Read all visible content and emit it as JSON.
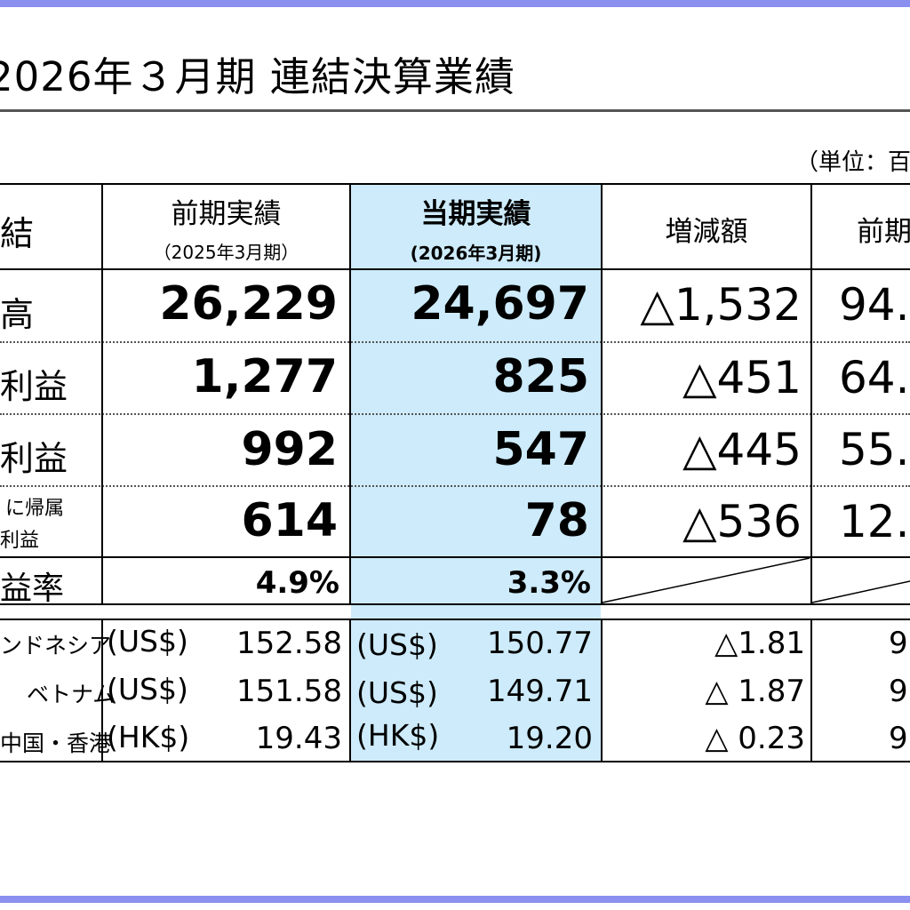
{
  "header": {
    "title": "2026年３月期 連結決算業績",
    "unit_note": "（単位：百"
  },
  "columns": {
    "label": "結",
    "prev": {
      "title": "前期実績",
      "period": "（2025年3月期）"
    },
    "curr": {
      "title": "当期実績",
      "period": "(2026年3月期)"
    },
    "diff": {
      "title": "増減額"
    },
    "ratio": {
      "title": "前期"
    }
  },
  "rows": [
    {
      "label": "高",
      "prev": "26,229",
      "curr": "24,697",
      "diff": "△1,532",
      "ratio": "94."
    },
    {
      "label": "利益",
      "prev": "1,277",
      "curr": "825",
      "diff": "△451",
      "ratio": "64."
    },
    {
      "label": "利益",
      "prev": "992",
      "curr": "547",
      "diff": "△445",
      "ratio": "55."
    },
    {
      "label_line1": "に帰属",
      "label_line2": "利益",
      "prev": "614",
      "curr": "78",
      "diff": "△536",
      "ratio": "12."
    },
    {
      "label": "益率",
      "prev": "4.9%",
      "curr": "3.3%"
    }
  ],
  "fx_rows": [
    {
      "country": "ンドネシア",
      "prev_ccy": "(US$)",
      "prev_rate": "152.58",
      "curr_ccy": "(US$)",
      "curr_rate": "150.77",
      "diff": "△1.81",
      "ratio": "9"
    },
    {
      "country": "ベトナム",
      "prev_ccy": "(US$)",
      "prev_rate": "151.58",
      "curr_ccy": "(US$)",
      "curr_rate": "149.71",
      "diff": "△ 1.87",
      "ratio": "9"
    },
    {
      "country": "中国・香港",
      "prev_ccy": "(HK$)",
      "prev_rate": "19.43",
      "curr_ccy": "(HK$)",
      "curr_rate": "19.20",
      "diff": "△ 0.23",
      "ratio": "9"
    }
  ]
}
